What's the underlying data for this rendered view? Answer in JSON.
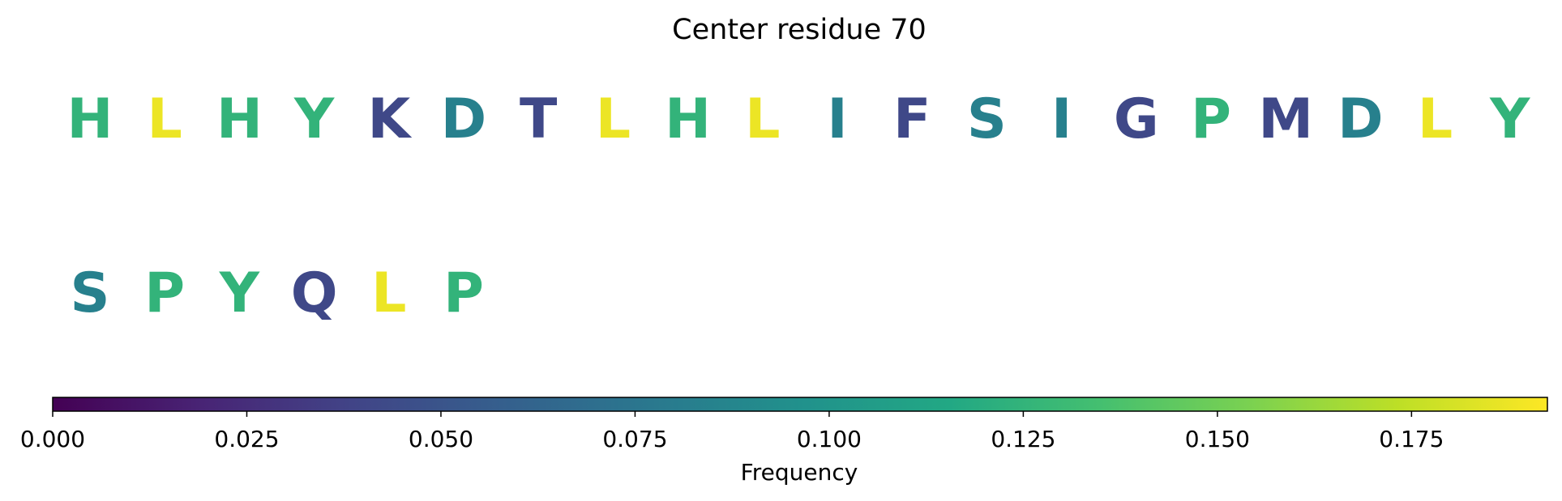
{
  "chart_data": {
    "type": "sequence-logo",
    "title": "Center residue 70",
    "residues": [
      {
        "letter": "H",
        "frequency": 0.125
      },
      {
        "letter": "L",
        "frequency": 0.1875
      },
      {
        "letter": "H",
        "frequency": 0.125
      },
      {
        "letter": "Y",
        "frequency": 0.125
      },
      {
        "letter": "K",
        "frequency": 0.0417
      },
      {
        "letter": "D",
        "frequency": 0.0833
      },
      {
        "letter": "T",
        "frequency": 0.0417
      },
      {
        "letter": "L",
        "frequency": 0.1875
      },
      {
        "letter": "H",
        "frequency": 0.125
      },
      {
        "letter": "L",
        "frequency": 0.1875
      },
      {
        "letter": "I",
        "frequency": 0.0833
      },
      {
        "letter": "F",
        "frequency": 0.0417
      },
      {
        "letter": "S",
        "frequency": 0.0833
      },
      {
        "letter": "I",
        "frequency": 0.0833
      },
      {
        "letter": "G",
        "frequency": 0.0417
      },
      {
        "letter": "P",
        "frequency": 0.125
      },
      {
        "letter": "M",
        "frequency": 0.0417
      },
      {
        "letter": "D",
        "frequency": 0.0833
      },
      {
        "letter": "L",
        "frequency": 0.1875
      },
      {
        "letter": "Y",
        "frequency": 0.125
      },
      {
        "letter": "S",
        "frequency": 0.0833
      },
      {
        "letter": "P",
        "frequency": 0.125
      },
      {
        "letter": "Y",
        "frequency": 0.125
      },
      {
        "letter": "Q",
        "frequency": 0.0417
      },
      {
        "letter": "L",
        "frequency": 0.1875
      },
      {
        "letter": "P",
        "frequency": 0.125
      }
    ],
    "residues_per_row": 20,
    "colorbar": {
      "label": "Frequency",
      "colormap": "viridis",
      "range": [
        0,
        0.1925
      ],
      "ticks": [
        0,
        0.025,
        0.05,
        0.075,
        0.1,
        0.125,
        0.15,
        0.175
      ],
      "tick_labels": [
        "0.000",
        "0.025",
        "0.050",
        "0.075",
        "0.100",
        "0.125",
        "0.150",
        "0.175"
      ]
    }
  }
}
